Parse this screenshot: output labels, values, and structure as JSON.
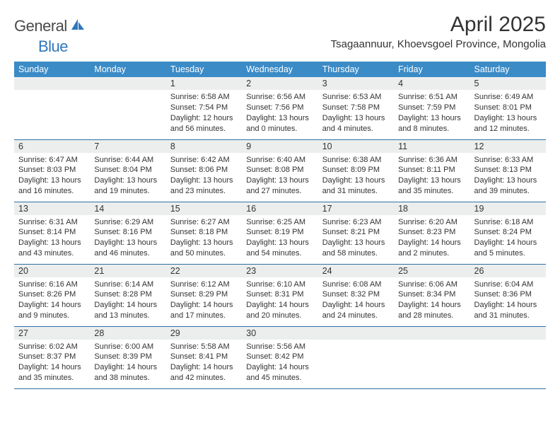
{
  "logo": {
    "text1": "General",
    "text2": "Blue",
    "color1": "#4a4a4a",
    "color2": "#2f77bb",
    "sail_color": "#2f77bb"
  },
  "title": "April 2025",
  "location": "Tsagaannuur, Khoevsgoel Province, Mongolia",
  "header_bg": "#3b8bc7",
  "header_fg": "#ffffff",
  "daynum_bg": "#eceeee",
  "rule_color": "#2f6fa3",
  "day_names": [
    "Sunday",
    "Monday",
    "Tuesday",
    "Wednesday",
    "Thursday",
    "Friday",
    "Saturday"
  ],
  "weeks": [
    [
      null,
      null,
      {
        "n": "1",
        "sr": "Sunrise: 6:58 AM",
        "ss": "Sunset: 7:54 PM",
        "dl": "Daylight: 12 hours and 56 minutes."
      },
      {
        "n": "2",
        "sr": "Sunrise: 6:56 AM",
        "ss": "Sunset: 7:56 PM",
        "dl": "Daylight: 13 hours and 0 minutes."
      },
      {
        "n": "3",
        "sr": "Sunrise: 6:53 AM",
        "ss": "Sunset: 7:58 PM",
        "dl": "Daylight: 13 hours and 4 minutes."
      },
      {
        "n": "4",
        "sr": "Sunrise: 6:51 AM",
        "ss": "Sunset: 7:59 PM",
        "dl": "Daylight: 13 hours and 8 minutes."
      },
      {
        "n": "5",
        "sr": "Sunrise: 6:49 AM",
        "ss": "Sunset: 8:01 PM",
        "dl": "Daylight: 13 hours and 12 minutes."
      }
    ],
    [
      {
        "n": "6",
        "sr": "Sunrise: 6:47 AM",
        "ss": "Sunset: 8:03 PM",
        "dl": "Daylight: 13 hours and 16 minutes."
      },
      {
        "n": "7",
        "sr": "Sunrise: 6:44 AM",
        "ss": "Sunset: 8:04 PM",
        "dl": "Daylight: 13 hours and 19 minutes."
      },
      {
        "n": "8",
        "sr": "Sunrise: 6:42 AM",
        "ss": "Sunset: 8:06 PM",
        "dl": "Daylight: 13 hours and 23 minutes."
      },
      {
        "n": "9",
        "sr": "Sunrise: 6:40 AM",
        "ss": "Sunset: 8:08 PM",
        "dl": "Daylight: 13 hours and 27 minutes."
      },
      {
        "n": "10",
        "sr": "Sunrise: 6:38 AM",
        "ss": "Sunset: 8:09 PM",
        "dl": "Daylight: 13 hours and 31 minutes."
      },
      {
        "n": "11",
        "sr": "Sunrise: 6:36 AM",
        "ss": "Sunset: 8:11 PM",
        "dl": "Daylight: 13 hours and 35 minutes."
      },
      {
        "n": "12",
        "sr": "Sunrise: 6:33 AM",
        "ss": "Sunset: 8:13 PM",
        "dl": "Daylight: 13 hours and 39 minutes."
      }
    ],
    [
      {
        "n": "13",
        "sr": "Sunrise: 6:31 AM",
        "ss": "Sunset: 8:14 PM",
        "dl": "Daylight: 13 hours and 43 minutes."
      },
      {
        "n": "14",
        "sr": "Sunrise: 6:29 AM",
        "ss": "Sunset: 8:16 PM",
        "dl": "Daylight: 13 hours and 46 minutes."
      },
      {
        "n": "15",
        "sr": "Sunrise: 6:27 AM",
        "ss": "Sunset: 8:18 PM",
        "dl": "Daylight: 13 hours and 50 minutes."
      },
      {
        "n": "16",
        "sr": "Sunrise: 6:25 AM",
        "ss": "Sunset: 8:19 PM",
        "dl": "Daylight: 13 hours and 54 minutes."
      },
      {
        "n": "17",
        "sr": "Sunrise: 6:23 AM",
        "ss": "Sunset: 8:21 PM",
        "dl": "Daylight: 13 hours and 58 minutes."
      },
      {
        "n": "18",
        "sr": "Sunrise: 6:20 AM",
        "ss": "Sunset: 8:23 PM",
        "dl": "Daylight: 14 hours and 2 minutes."
      },
      {
        "n": "19",
        "sr": "Sunrise: 6:18 AM",
        "ss": "Sunset: 8:24 PM",
        "dl": "Daylight: 14 hours and 5 minutes."
      }
    ],
    [
      {
        "n": "20",
        "sr": "Sunrise: 6:16 AM",
        "ss": "Sunset: 8:26 PM",
        "dl": "Daylight: 14 hours and 9 minutes."
      },
      {
        "n": "21",
        "sr": "Sunrise: 6:14 AM",
        "ss": "Sunset: 8:28 PM",
        "dl": "Daylight: 14 hours and 13 minutes."
      },
      {
        "n": "22",
        "sr": "Sunrise: 6:12 AM",
        "ss": "Sunset: 8:29 PM",
        "dl": "Daylight: 14 hours and 17 minutes."
      },
      {
        "n": "23",
        "sr": "Sunrise: 6:10 AM",
        "ss": "Sunset: 8:31 PM",
        "dl": "Daylight: 14 hours and 20 minutes."
      },
      {
        "n": "24",
        "sr": "Sunrise: 6:08 AM",
        "ss": "Sunset: 8:32 PM",
        "dl": "Daylight: 14 hours and 24 minutes."
      },
      {
        "n": "25",
        "sr": "Sunrise: 6:06 AM",
        "ss": "Sunset: 8:34 PM",
        "dl": "Daylight: 14 hours and 28 minutes."
      },
      {
        "n": "26",
        "sr": "Sunrise: 6:04 AM",
        "ss": "Sunset: 8:36 PM",
        "dl": "Daylight: 14 hours and 31 minutes."
      }
    ],
    [
      {
        "n": "27",
        "sr": "Sunrise: 6:02 AM",
        "ss": "Sunset: 8:37 PM",
        "dl": "Daylight: 14 hours and 35 minutes."
      },
      {
        "n": "28",
        "sr": "Sunrise: 6:00 AM",
        "ss": "Sunset: 8:39 PM",
        "dl": "Daylight: 14 hours and 38 minutes."
      },
      {
        "n": "29",
        "sr": "Sunrise: 5:58 AM",
        "ss": "Sunset: 8:41 PM",
        "dl": "Daylight: 14 hours and 42 minutes."
      },
      {
        "n": "30",
        "sr": "Sunrise: 5:56 AM",
        "ss": "Sunset: 8:42 PM",
        "dl": "Daylight: 14 hours and 45 minutes."
      },
      null,
      null,
      null
    ]
  ]
}
